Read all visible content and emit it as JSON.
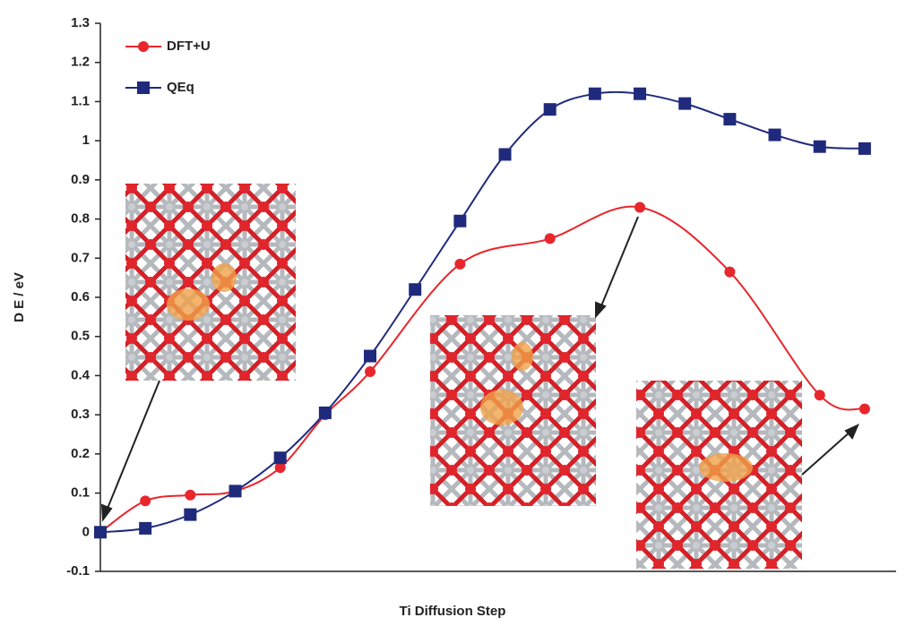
{
  "chart_data": {
    "type": "line",
    "x_label": "Ti Diffusion Step",
    "y_label": "D E / eV",
    "xlim": [
      0,
      17.7
    ],
    "ylim": [
      -0.1,
      1.3
    ],
    "yticks": [
      -0.1,
      0,
      0.1,
      0.2,
      0.3,
      0.4,
      0.5,
      0.6,
      0.7,
      0.8,
      0.9,
      1,
      1.1,
      1.2,
      1.3
    ],
    "smooth": true,
    "series": [
      {
        "name": "DFT+U",
        "color": "#e8262b",
        "marker": "circle",
        "x": [
          0,
          1,
          2,
          3,
          4,
          5,
          6,
          8,
          10,
          12,
          14,
          16,
          17
        ],
        "values": [
          0,
          0.08,
          0.095,
          0.105,
          0.165,
          0.3,
          0.41,
          0.685,
          0.75,
          0.83,
          0.665,
          0.35,
          0.315
        ]
      },
      {
        "name": "QEq",
        "color": "#1f2a7c",
        "marker": "square",
        "x": [
          0,
          1,
          2,
          3,
          4,
          5,
          6,
          7,
          8,
          9,
          10,
          11,
          12,
          13,
          14,
          15,
          16,
          17
        ],
        "values": [
          0,
          0.01,
          0.045,
          0.105,
          0.19,
          0.305,
          0.45,
          0.62,
          0.795,
          0.965,
          1.08,
          1.12,
          1.12,
          1.095,
          1.055,
          1.015,
          0.985,
          0.98
        ]
      }
    ]
  }
}
